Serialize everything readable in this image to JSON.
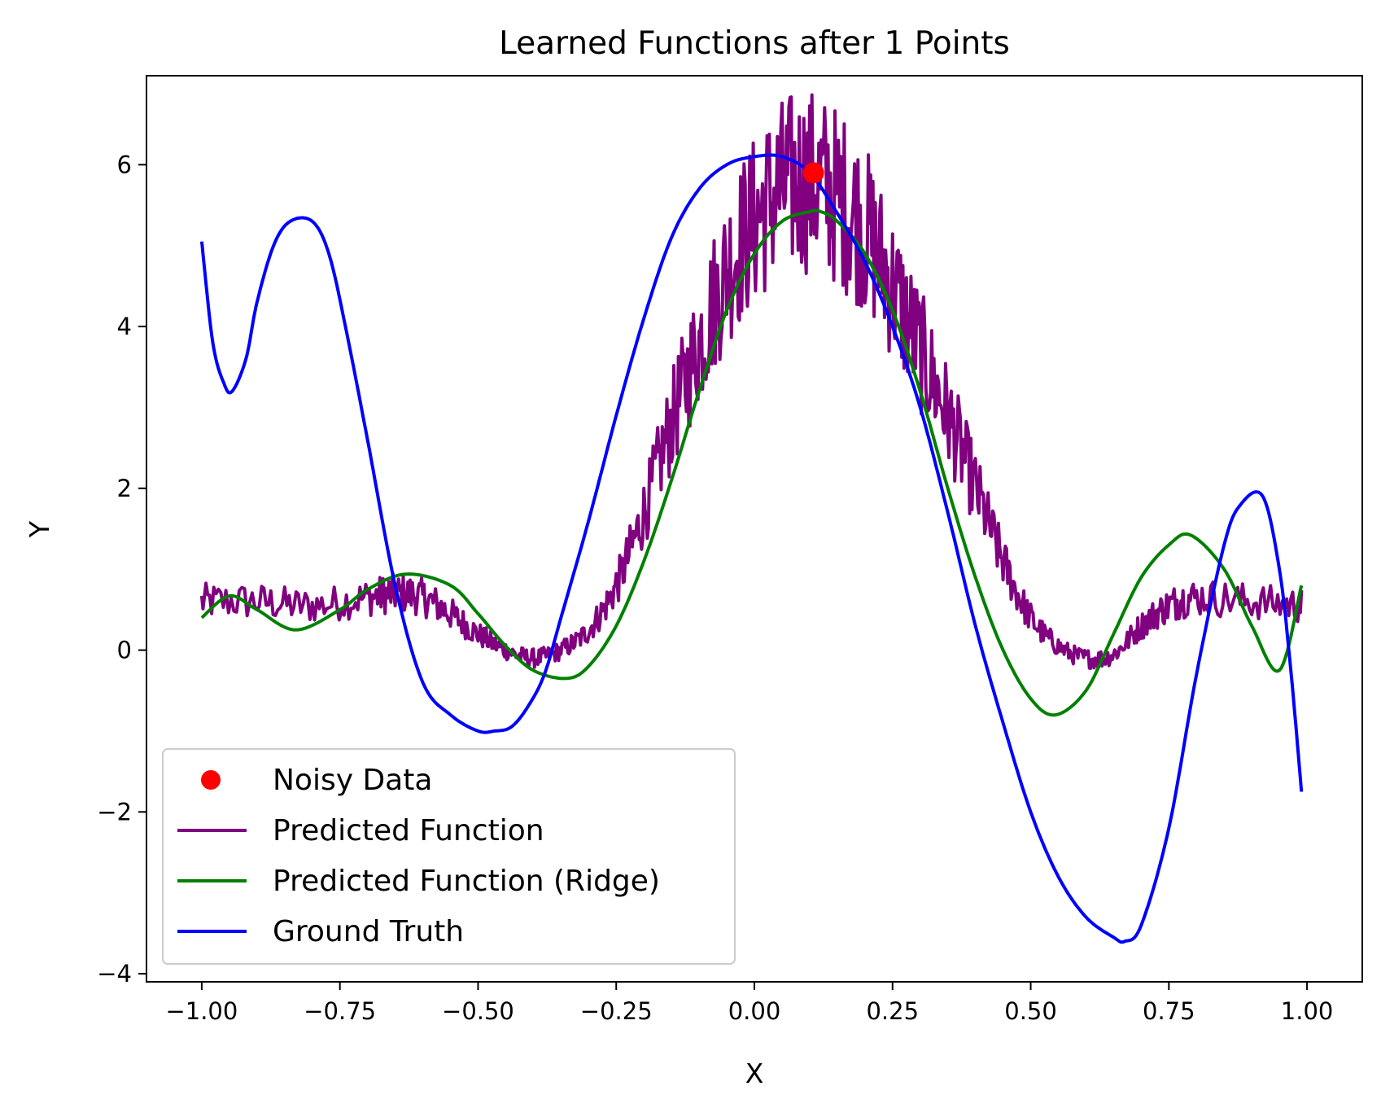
{
  "chart_data": {
    "type": "line",
    "title": "Learned Functions after 1 Points",
    "xlabel": "X",
    "ylabel": "Y",
    "xlim": [
      -1.1,
      1.1
    ],
    "ylim": [
      -4.1,
      7.1
    ],
    "xticks": [
      -1.0,
      -0.75,
      -0.5,
      -0.25,
      0.0,
      0.25,
      0.5,
      0.75,
      1.0
    ],
    "xtick_labels": [
      "−1.00",
      "−0.75",
      "−0.50",
      "−0.25",
      "0.00",
      "0.25",
      "0.50",
      "0.75",
      "1.00"
    ],
    "yticks": [
      -4,
      -2,
      0,
      2,
      4,
      6
    ],
    "ytick_labels": [
      "−4",
      "−2",
      "0",
      "2",
      "4",
      "6"
    ],
    "grid": false,
    "legend_position": "lower-left",
    "scatter": {
      "name": "Noisy Data",
      "color": "#ff0000",
      "x": [
        0.107
      ],
      "y": [
        5.9
      ]
    },
    "series": [
      {
        "name": "Predicted Function",
        "color": "#800080",
        "noisy": true,
        "x": [
          -1.0,
          -0.9,
          -0.8,
          -0.7,
          -0.65,
          -0.6,
          -0.55,
          -0.5,
          -0.45,
          -0.4,
          -0.35,
          -0.3,
          -0.25,
          -0.2,
          -0.15,
          -0.1,
          -0.05,
          0.0,
          0.05,
          0.1,
          0.15,
          0.2,
          0.25,
          0.3,
          0.35,
          0.4,
          0.45,
          0.5,
          0.55,
          0.6,
          0.65,
          0.7,
          0.75,
          0.8,
          0.9,
          0.99
        ],
        "y": [
          0.6,
          0.6,
          0.55,
          0.65,
          0.7,
          0.65,
          0.45,
          0.2,
          0.0,
          -0.1,
          0.0,
          0.25,
          0.8,
          1.7,
          2.8,
          3.8,
          4.7,
          5.3,
          5.7,
          5.8,
          5.6,
          5.2,
          4.5,
          3.7,
          2.9,
          2.0,
          1.1,
          0.4,
          0.05,
          -0.1,
          -0.05,
          0.3,
          0.55,
          0.65,
          0.6,
          0.55
        ]
      },
      {
        "name": "Predicted Function (Ridge)",
        "color": "#008000",
        "x": [
          -1.0,
          -0.95,
          -0.9,
          -0.83,
          -0.75,
          -0.7,
          -0.63,
          -0.55,
          -0.5,
          -0.45,
          -0.4,
          -0.34,
          -0.3,
          -0.25,
          -0.2,
          -0.15,
          -0.1,
          -0.05,
          0.0,
          0.05,
          0.1,
          0.12,
          0.15,
          0.2,
          0.25,
          0.3,
          0.35,
          0.4,
          0.45,
          0.5,
          0.545,
          0.6,
          0.65,
          0.7,
          0.75,
          0.79,
          0.85,
          0.9,
          0.95,
          0.99
        ],
        "y": [
          0.4,
          0.67,
          0.5,
          0.25,
          0.5,
          0.75,
          0.94,
          0.8,
          0.45,
          0.05,
          -0.25,
          -0.35,
          -0.2,
          0.3,
          1.1,
          2.1,
          3.2,
          4.2,
          4.9,
          5.3,
          5.42,
          5.42,
          5.3,
          4.9,
          4.2,
          3.2,
          2.0,
          0.9,
          0.0,
          -0.6,
          -0.8,
          -0.5,
          0.2,
          0.9,
          1.3,
          1.42,
          1.0,
          0.3,
          -0.25,
          0.8
        ]
      },
      {
        "name": "Ground Truth",
        "color": "#0000ff",
        "x": [
          -1.0,
          -0.98,
          -0.96,
          -0.945,
          -0.92,
          -0.9,
          -0.87,
          -0.84,
          -0.8,
          -0.77,
          -0.74,
          -0.7,
          -0.65,
          -0.6,
          -0.55,
          -0.5,
          -0.47,
          -0.44,
          -0.41,
          -0.38,
          -0.35,
          -0.3,
          -0.25,
          -0.2,
          -0.15,
          -0.1,
          -0.05,
          0.0,
          0.05,
          0.1,
          0.15,
          0.2,
          0.25,
          0.3,
          0.35,
          0.4,
          0.45,
          0.5,
          0.55,
          0.6,
          0.65,
          0.67,
          0.7,
          0.75,
          0.8,
          0.85,
          0.88,
          0.92,
          0.95,
          0.97,
          0.99
        ],
        "y": [
          5.05,
          3.8,
          3.3,
          3.2,
          3.6,
          4.3,
          5.0,
          5.3,
          5.3,
          4.9,
          4.0,
          2.6,
          0.8,
          -0.4,
          -0.8,
          -1.0,
          -1.0,
          -0.95,
          -0.7,
          -0.3,
          0.4,
          1.6,
          2.9,
          4.1,
          5.1,
          5.7,
          6.0,
          6.1,
          6.1,
          5.9,
          5.4,
          4.8,
          4.0,
          3.0,
          1.7,
          0.3,
          -0.9,
          -2.0,
          -2.8,
          -3.3,
          -3.55,
          -3.6,
          -3.4,
          -2.2,
          -0.3,
          1.3,
          1.8,
          1.9,
          1.0,
          -0.2,
          -1.75
        ]
      }
    ]
  }
}
